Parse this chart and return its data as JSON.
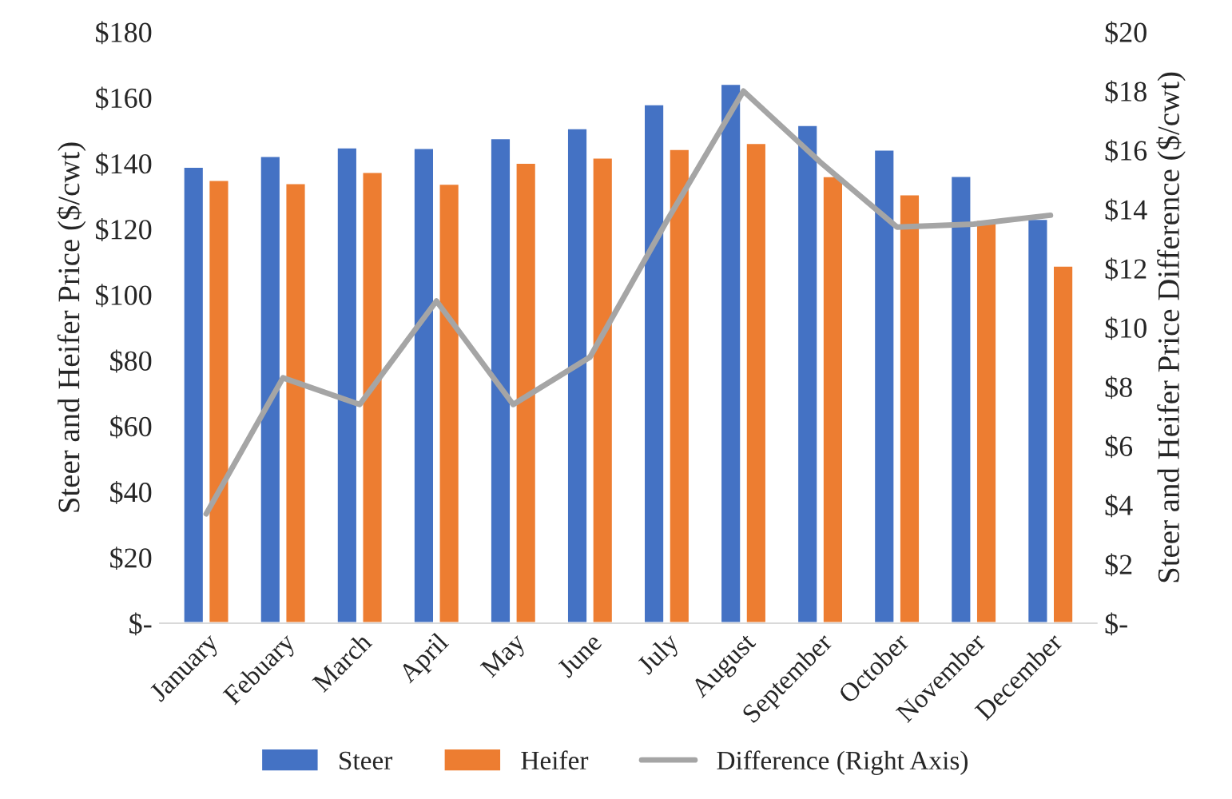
{
  "chart_data": {
    "type": "bar",
    "categories": [
      "January",
      "Febuary",
      "March",
      "April",
      "May",
      "June",
      "July",
      "August",
      "September",
      "October",
      "November",
      "December"
    ],
    "series": [
      {
        "name": "Steer",
        "color": "#4472c4",
        "values": [
          139.0,
          142.3,
          144.9,
          144.7,
          147.7,
          150.7,
          158.0,
          164.2,
          151.7,
          144.2,
          136.2,
          123.1
        ]
      },
      {
        "name": "Heifer",
        "color": "#ed7d31",
        "values": [
          135.0,
          134.0,
          137.4,
          133.8,
          140.2,
          141.8,
          144.4,
          146.2,
          136.1,
          130.6,
          122.8,
          108.9
        ]
      },
      {
        "name": "Difference (Right Axis)",
        "type": "line",
        "axis": "y2",
        "color": "#a5a5a5",
        "values": [
          3.7,
          8.3,
          7.4,
          10.9,
          7.4,
          9.0,
          13.6,
          18.0,
          15.6,
          13.4,
          13.5,
          13.8
        ]
      }
    ],
    "ylabel": "Steer and Heifer Price ($/cwt)",
    "y2label": "Steer and Heifer Price Difference ($/cwt)",
    "ylim": [
      0,
      180
    ],
    "yticks": [
      {
        "value": 0,
        "label": "$-"
      },
      {
        "value": 20,
        "label": "$20"
      },
      {
        "value": 40,
        "label": "$40"
      },
      {
        "value": 60,
        "label": "$60"
      },
      {
        "value": 80,
        "label": "$80"
      },
      {
        "value": 100,
        "label": "$100"
      },
      {
        "value": 120,
        "label": "$120"
      },
      {
        "value": 140,
        "label": "$140"
      },
      {
        "value": 160,
        "label": "$160"
      },
      {
        "value": 180,
        "label": "$180"
      }
    ],
    "y2lim": [
      0,
      20
    ],
    "y2ticks": [
      {
        "value": 0,
        "label": "$-"
      },
      {
        "value": 2,
        "label": "$2"
      },
      {
        "value": 4,
        "label": "$4"
      },
      {
        "value": 6,
        "label": "$6"
      },
      {
        "value": 8,
        "label": "$8"
      },
      {
        "value": 10,
        "label": "$10"
      },
      {
        "value": 12,
        "label": "$12"
      },
      {
        "value": 14,
        "label": "$14"
      },
      {
        "value": 16,
        "label": "$16"
      },
      {
        "value": 18,
        "label": "$18"
      },
      {
        "value": 20,
        "label": "$20"
      }
    ],
    "legend": "bottom",
    "grid": false
  }
}
